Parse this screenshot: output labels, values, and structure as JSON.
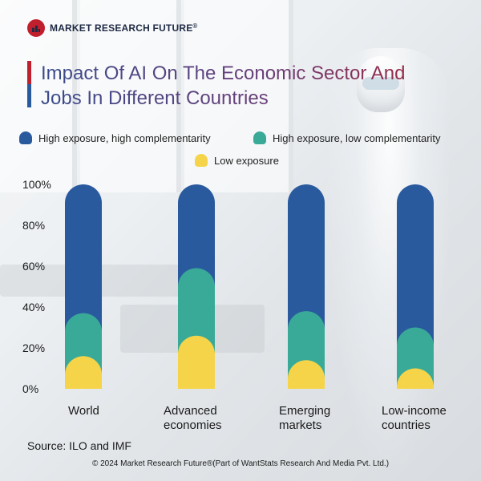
{
  "brand": {
    "logo_text": "MARKET RESEARCH FUTURE",
    "registered": "®"
  },
  "title_line1": "Impact Of AI On The Economic Sector And",
  "title_line2": "Jobs In Different Countries",
  "chart_data": {
    "type": "bar",
    "stacked": true,
    "title": "Impact Of AI On The Economic Sector And Jobs In Different Countries",
    "categories": [
      "World",
      "Advanced economies",
      "Emerging markets",
      "Low-income countries"
    ],
    "category_lines": [
      [
        "World"
      ],
      [
        "Advanced",
        "economies"
      ],
      [
        "Emerging",
        "markets"
      ],
      [
        "Low-income",
        "countries"
      ]
    ],
    "series": [
      {
        "name": "Low exposure",
        "color": "#f5d44a",
        "values": [
          16,
          26,
          14,
          10
        ]
      },
      {
        "name": "High exposure, low complementarity",
        "color": "#3aaa98",
        "values": [
          21,
          33,
          24,
          20
        ]
      },
      {
        "name": "High exposure, high complementarity",
        "color": "#2a5a9e",
        "values": [
          63,
          41,
          62,
          70
        ]
      }
    ],
    "legend": [
      {
        "name": "High exposure, high complementarity",
        "color": "#2a5a9e"
      },
      {
        "name": "High exposure, low complementarity",
        "color": "#3aaa98"
      },
      {
        "name": "Low exposure",
        "color": "#f5d44a"
      }
    ],
    "yticks": [
      "100%",
      "80%",
      "60%",
      "40%",
      "20%",
      "0%"
    ],
    "ylim": [
      0,
      100
    ],
    "xlabel": "",
    "ylabel": ""
  },
  "source": "Source: ILO and IMF",
  "footer": "© 2024 Market Research Future®(Part of WantStats Research And Media Pvt. Ltd.)"
}
